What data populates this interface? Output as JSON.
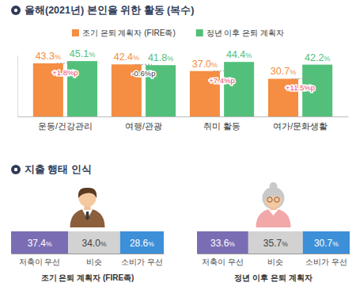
{
  "chart_data": [
    {
      "type": "bar",
      "title": "올해(2021년) 본인을 위한 활동 (복수)",
      "categories": [
        "운동/건강관리",
        "여행/관광",
        "취미 활동",
        "여가/문화생활"
      ],
      "series": [
        {
          "name": "조기 은퇴 계획자 (FIRE족)",
          "color": "#f58d42",
          "values": [
            43.3,
            42.4,
            37.0,
            30.7
          ],
          "value_labels": [
            "43.3%",
            "42.4%",
            "37.0%",
            "30.7%"
          ]
        },
        {
          "name": "정년 이후 은퇴 계획자",
          "color": "#52c07a",
          "values": [
            45.1,
            41.8,
            44.4,
            42.2
          ],
          "value_labels": [
            "45.1%",
            "41.8%",
            "44.4%",
            "42.2%"
          ]
        }
      ],
      "annotations": [
        "+1.8%p",
        "-0.6%p",
        "+7.4%p",
        "+11.5%p"
      ],
      "ylim": [
        0,
        50
      ],
      "legend": "top",
      "data_labels": true,
      "tick_labels": "x"
    },
    {
      "type": "bar",
      "title": "지출 행태 인식",
      "orientation": "horizontal",
      "stacked": true,
      "categories": [
        "조기 은퇴 계획자 (FIRE족)",
        "정년 이후 은퇴 계획자"
      ],
      "series": [
        {
          "name": "저축이 우선",
          "color": "#7b6db4",
          "values": [
            37.4,
            33.6
          ],
          "value_labels": [
            "37.4%",
            "33.6%"
          ]
        },
        {
          "name": "비슷",
          "color": "#d2d2d2",
          "values": [
            34.0,
            35.7
          ],
          "value_labels": [
            "34.0%",
            "35.7%"
          ]
        },
        {
          "name": "소비가 우선",
          "color": "#3d8fd8",
          "values": [
            28.6,
            30.7
          ],
          "value_labels": [
            "28.6%",
            "30.7%"
          ]
        }
      ],
      "xlim": [
        0,
        100
      ],
      "legend": "bottom",
      "data_labels": true,
      "tick_labels": false
    }
  ]
}
